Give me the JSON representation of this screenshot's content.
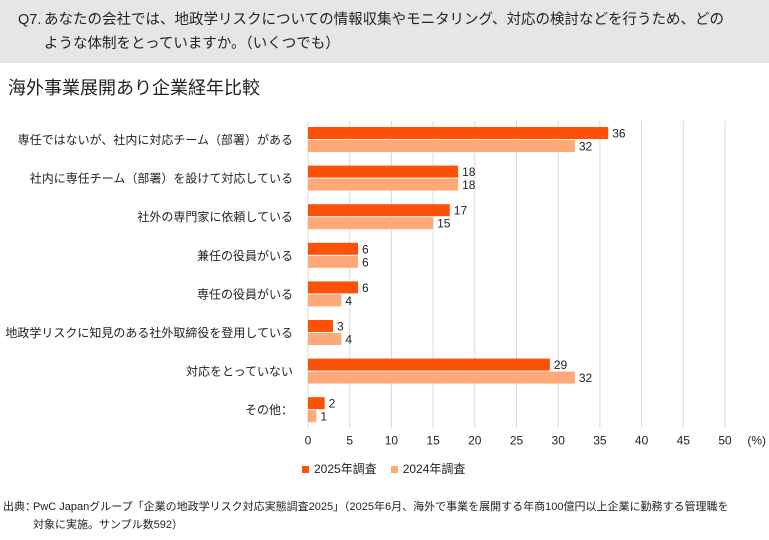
{
  "question": {
    "number": "Q7.",
    "lines": [
      "あなたの会社では、地政学リスクについての情報収集やモニタリング、対応の検討などを行うため、どの",
      "ような体制をとっていますか。（いくつでも）"
    ]
  },
  "subtitle": "海外事業展開あり企業経年比較",
  "chart_data": {
    "type": "bar",
    "orientation": "horizontal",
    "categories": [
      "専任ではないが、社内に対応チーム（部署）がある",
      "社内に専任チーム（部署）を設けて対応している",
      "社外の専門家に依頼している",
      "兼任の役員がいる",
      "専任の役員がいる",
      "地政学リスクに知見のある社外取締役を登用している",
      "対応をとっていない",
      "その他："
    ],
    "series": [
      {
        "name": "2025年調査",
        "color": "#FD5108",
        "values": [
          36,
          18,
          17,
          6,
          6,
          3,
          29,
          2
        ]
      },
      {
        "name": "2024年調査",
        "color": "#FFA978",
        "values": [
          32,
          18,
          15,
          6,
          4,
          4,
          32,
          1
        ]
      }
    ],
    "xlim": [
      0,
      50
    ],
    "ticks": [
      0,
      5,
      10,
      15,
      20,
      25,
      30,
      35,
      40,
      45,
      50
    ],
    "unit_label": "(%)",
    "grid": true,
    "legend": "bottom",
    "data_labels": true
  },
  "source": {
    "label": "出典：",
    "lines": [
      "PwC Japanグループ「企業の地政学リスク対応実態調査2025」（2025年6月、海外で事業を展開する年商100億円以上企業に勤務する管理職を",
      "対象に実施。サンプル数592）"
    ]
  }
}
